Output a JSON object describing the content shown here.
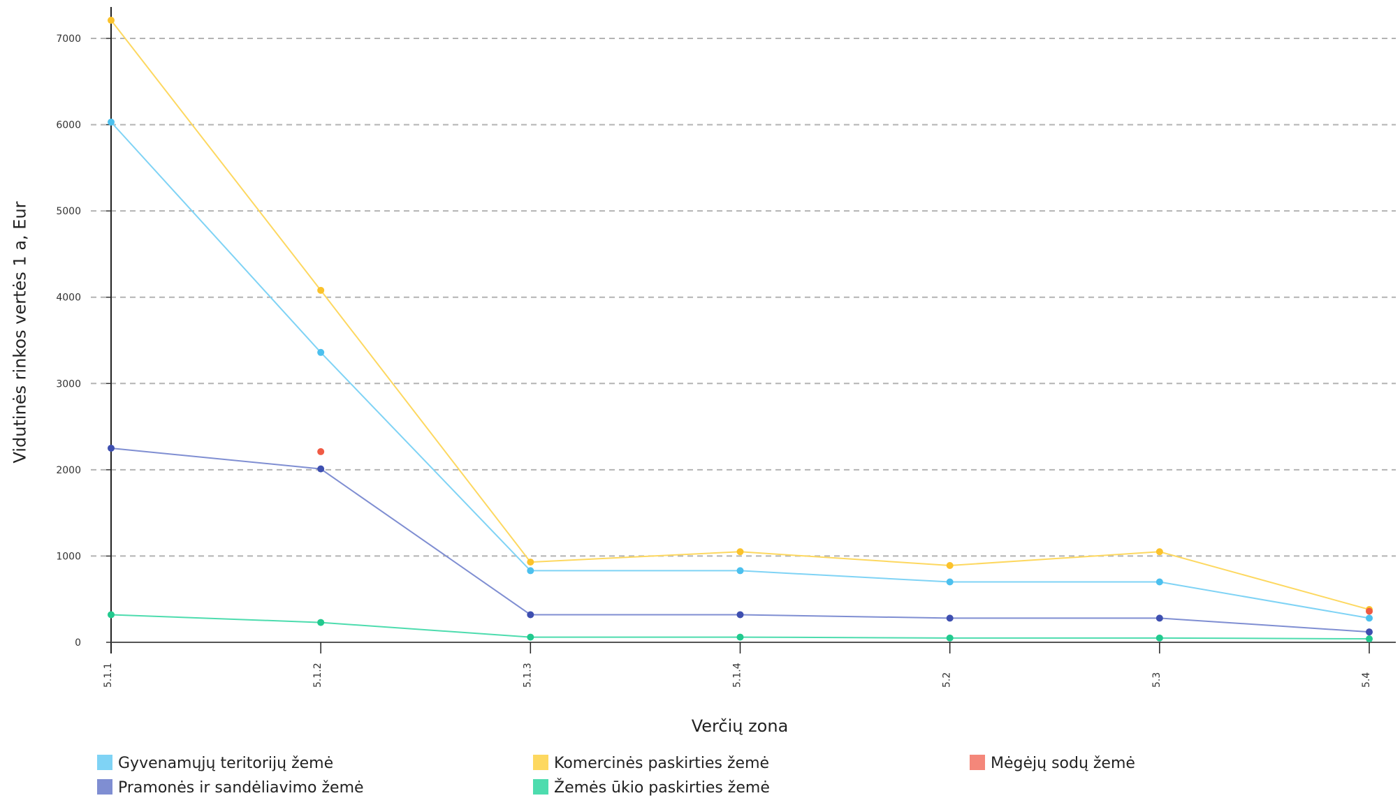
{
  "chart_data": {
    "type": "line",
    "xlabel": "Verčių zona",
    "ylabel": "Vidutinės rinkos vertės 1 a, Eur",
    "categories": [
      "5.1.1",
      "5.1.2",
      "5.1.3",
      "5.1.4",
      "5.2",
      "5.3",
      "5.4"
    ],
    "ylim": [
      0,
      7000
    ],
    "yticks": [
      0,
      1000,
      2000,
      3000,
      4000,
      5000,
      6000,
      7000
    ],
    "grid": true,
    "legend_position": "bottom",
    "series": [
      {
        "name": "Gyvenamųjų teritorijų žemė",
        "color": "#7fd3f5",
        "marker_color": "#4cc0ee",
        "values": [
          6030,
          3360,
          830,
          830,
          700,
          700,
          280
        ]
      },
      {
        "name": "Komercinės paskirties žemė",
        "color": "#fdd860",
        "marker_color": "#fbc22b",
        "values": [
          7210,
          4080,
          930,
          1050,
          890,
          1050,
          380
        ]
      },
      {
        "name": "Mėgėjų sodų žemė",
        "color": "#f4877a",
        "marker_color": "#f05a44",
        "values": [
          null,
          2210,
          null,
          null,
          null,
          null,
          360
        ]
      },
      {
        "name": "Pramonės ir sandėliavimo žemė",
        "color": "#7f8ed2",
        "marker_color": "#3e4fb0",
        "values": [
          2250,
          2010,
          320,
          320,
          280,
          280,
          120
        ]
      },
      {
        "name": "Žemės ūkio paskirties žemė",
        "color": "#4ddcae",
        "marker_color": "#22c98e",
        "values": [
          320,
          230,
          60,
          60,
          50,
          50,
          40
        ]
      }
    ]
  }
}
